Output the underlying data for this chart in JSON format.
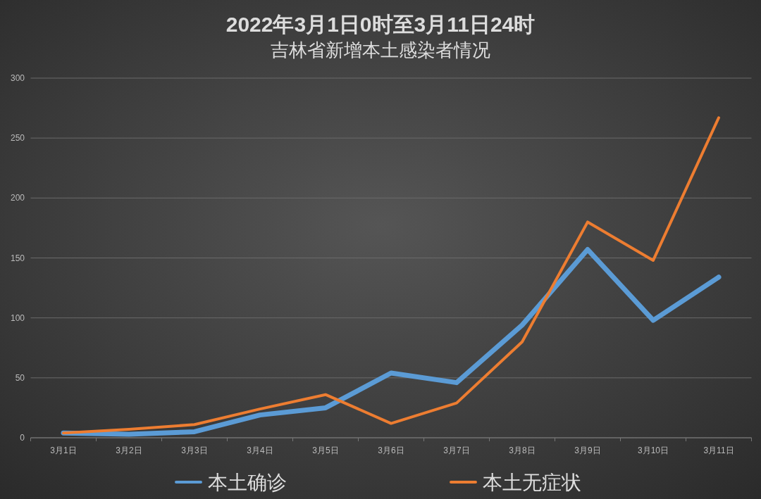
{
  "chart_data": {
    "type": "line",
    "title": "2022年3月1日0时至3月11日24时",
    "subtitle": "吉林省新增本土感染者情况",
    "categories": [
      "3月1日",
      "3月2日",
      "3月3日",
      "3月4日",
      "3月5日",
      "3月6日",
      "3月7日",
      "3月8日",
      "3月9日",
      "3月10日",
      "3月11日"
    ],
    "series": [
      {
        "name": "本土确诊",
        "color": "#5b9bd5",
        "values": [
          4,
          3,
          5,
          19,
          25,
          54,
          46,
          94,
          157,
          98,
          134
        ]
      },
      {
        "name": "本土无症状",
        "color": "#ed7d31",
        "values": [
          4,
          7,
          11,
          24,
          36,
          12,
          29,
          80,
          180,
          148,
          267
        ]
      }
    ],
    "ylim": [
      0,
      300
    ],
    "yticks": [
      0,
      50,
      100,
      150,
      200,
      250,
      300
    ],
    "grid": "y",
    "legend": "bottom",
    "marker": "none",
    "line_style": "solid"
  }
}
